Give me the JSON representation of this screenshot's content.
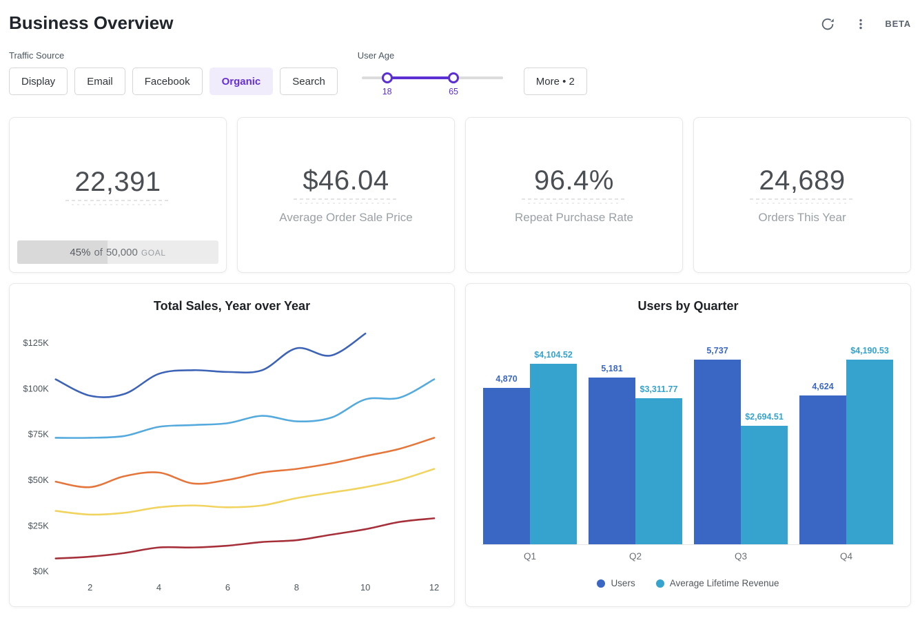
{
  "theme": {
    "accent": "#5b2fd1",
    "accent_light_bg": "#f1ecfb"
  },
  "header": {
    "title": "Business Overview",
    "beta_label": "BETA",
    "icons": [
      "refresh-icon",
      "kebab-menu-icon"
    ]
  },
  "filters": {
    "traffic_source": {
      "label": "Traffic Source",
      "options": [
        {
          "label": "Display",
          "selected": false
        },
        {
          "label": "Email",
          "selected": false
        },
        {
          "label": "Facebook",
          "selected": false
        },
        {
          "label": "Organic",
          "selected": true
        },
        {
          "label": "Search",
          "selected": false
        }
      ]
    },
    "user_age": {
      "label": "User Age",
      "min_value": 18,
      "max_value": 65,
      "domain_min": 0,
      "domain_max": 100
    },
    "more_label": "More • 2"
  },
  "kpis": [
    {
      "value": "22,391",
      "goal": {
        "pct": 45,
        "pct_text": "45%",
        "of_text": "of",
        "target_text": "50,000",
        "goal_word": "GOAL"
      }
    },
    {
      "value": "$46.04",
      "label": "Average Order Sale Price"
    },
    {
      "value": "96.4%",
      "label": "Repeat Purchase Rate"
    },
    {
      "value": "24,689",
      "label": "Orders This Year"
    }
  ],
  "chart_data": [
    {
      "type": "line",
      "title": "Total Sales, Year over Year",
      "xlabel": "",
      "ylabel": "",
      "x_ticks": [
        2,
        4,
        6,
        8,
        10,
        12
      ],
      "y_ticks": [
        {
          "value": 0,
          "label": "$0K"
        },
        {
          "value": 25,
          "label": "$25K"
        },
        {
          "value": 50,
          "label": "$50K"
        },
        {
          "value": 75,
          "label": "$75K"
        },
        {
          "value": 100,
          "label": "$100K"
        },
        {
          "value": 125,
          "label": "$125K"
        }
      ],
      "xlim": [
        1,
        12
      ],
      "ylim": [
        0,
        135
      ],
      "y_unit": "$K",
      "grid": false,
      "legend": "none",
      "series": [
        {
          "name": "line-1-dark-blue",
          "color": "#3d63b6",
          "values": [
            105,
            96,
            97,
            108,
            110,
            109,
            110,
            122,
            118,
            130
          ]
        },
        {
          "name": "line-2-light-blue",
          "color": "#55aadd",
          "values": [
            73,
            73,
            74,
            79,
            80,
            81,
            85,
            82,
            84,
            94,
            95,
            105
          ]
        },
        {
          "name": "line-3-orange",
          "color": "#e4763c",
          "values": [
            49,
            46,
            52,
            54,
            48,
            50,
            54,
            56,
            59,
            63,
            67,
            73
          ]
        },
        {
          "name": "line-4-yellow",
          "color": "#f0d45f",
          "values": [
            33,
            31,
            32,
            35,
            36,
            35,
            36,
            40,
            43,
            46,
            50,
            56
          ]
        },
        {
          "name": "line-5-dark-red",
          "color": "#a5303a",
          "values": [
            7,
            8,
            10,
            13,
            13,
            14,
            16,
            17,
            20,
            23,
            27,
            29
          ]
        }
      ]
    },
    {
      "type": "bar",
      "title": "Users by Quarter",
      "categories": [
        "Q1",
        "Q2",
        "Q3",
        "Q4"
      ],
      "grid": false,
      "legend_position": "bottom",
      "series": [
        {
          "name": "Users",
          "color": "#3a66c4",
          "values": [
            4870,
            5181,
            5737,
            4624
          ],
          "labels": [
            "4,870",
            "5,181",
            "5,737",
            "4,624"
          ]
        },
        {
          "name": "Average Lifetime Revenue",
          "color": "#35a3cd",
          "values": [
            4104.52,
            3311.77,
            2694.51,
            4190.53
          ],
          "labels": [
            "$4,104.52",
            "$3,311.77",
            "$2,694.51",
            "$4,190.53"
          ]
        }
      ]
    }
  ]
}
